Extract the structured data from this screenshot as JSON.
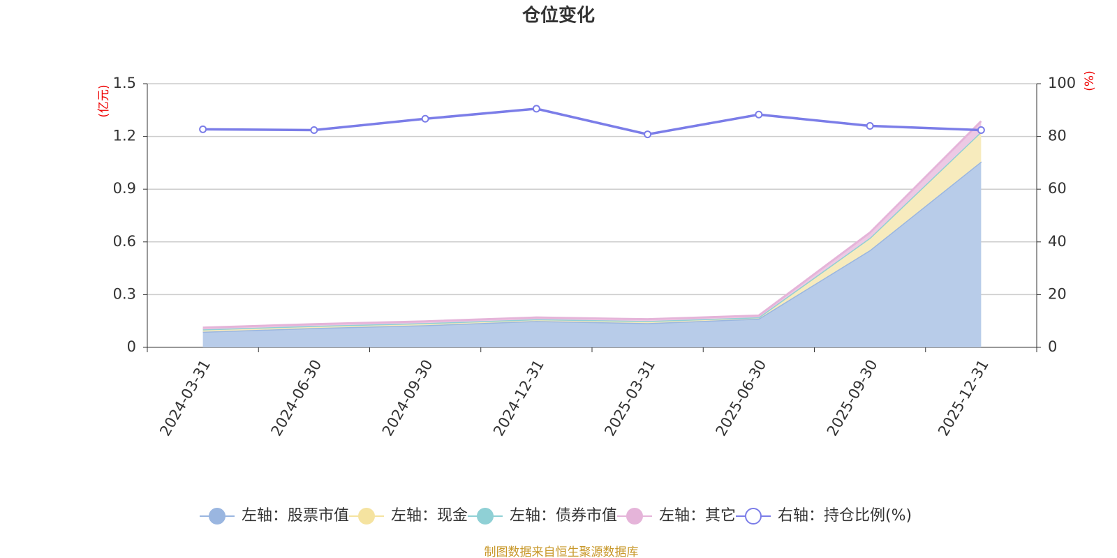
{
  "chart_data": {
    "type": "area",
    "title": "仓位变化",
    "y_label": "(亿元)",
    "y2_label": "(%)",
    "source": "制图数据来自恒生聚源数据库",
    "categories": [
      "2024-03-31",
      "2024-06-30",
      "2024-09-30",
      "2024-12-31",
      "2025-03-31",
      "2025-06-30",
      "2025-09-30",
      "2025-12-31"
    ],
    "series": [
      {
        "name": "左轴：股票市值",
        "type": "area",
        "color": "#9ab6e0",
        "fill": "#b8cce9",
        "values": [
          0.089,
          0.11,
          0.126,
          0.15,
          0.138,
          0.163,
          0.553,
          1.057
        ]
      },
      {
        "name": "左轴：现金",
        "type": "area",
        "color": "#f5e3a0",
        "fill": "#f7ebbd",
        "values": [
          0.013,
          0.012,
          0.012,
          0.01,
          0.012,
          0.008,
          0.07,
          0.17
        ]
      },
      {
        "name": "左轴：债券市值",
        "type": "area",
        "color": "#8fd0d5",
        "fill": "#b5e0e3",
        "values": [
          0,
          0,
          0,
          0,
          0,
          0,
          0,
          0
        ]
      },
      {
        "name": "左轴：其它",
        "type": "area",
        "color": "#e5b4d9",
        "fill": "#edc9e4",
        "values": [
          0.01,
          0.01,
          0.01,
          0.01,
          0.01,
          0.01,
          0.03,
          0.06
        ]
      },
      {
        "name": "右轴：持仓比例(%)",
        "type": "line",
        "axis": "y2",
        "color": "#7b7de8",
        "values": [
          82.7,
          82.4,
          86.7,
          90.5,
          80.8,
          88.3,
          84.0,
          82.4
        ]
      }
    ],
    "ylim": [
      0,
      1.5
    ],
    "yticks": [
      0,
      0.3,
      0.6,
      0.9,
      1.2,
      1.5
    ],
    "y2lim": [
      0,
      100
    ],
    "y2ticks": [
      0,
      20,
      40,
      60,
      80,
      100
    ],
    "grid": true,
    "legend": "bottom"
  }
}
